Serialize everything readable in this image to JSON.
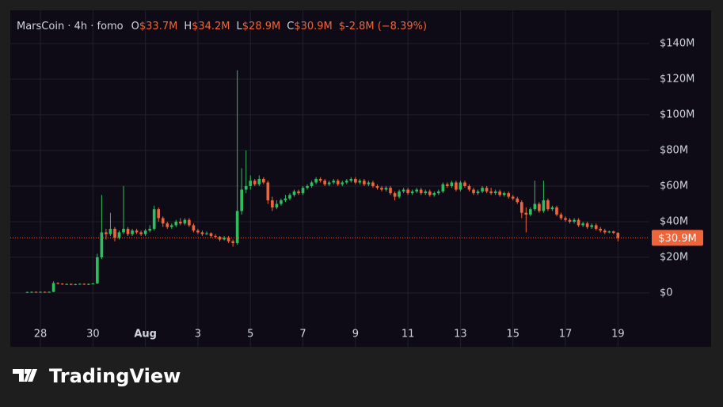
{
  "chart_data": {
    "type": "candlestick",
    "title": "MarsCoin · 4h · fomo",
    "ohlc_readout": [
      {
        "label": "O",
        "value": "$33.7M"
      },
      {
        "label": "H",
        "value": "$34.2M"
      },
      {
        "label": "L",
        "value": "$28.9M"
      },
      {
        "label": "C",
        "value": "$30.9M"
      }
    ],
    "change": "$-2.8M (−8.39%)",
    "up_color": "#2ebd5f",
    "down_color": "#f0643a",
    "grid": true,
    "categories": [
      null,
      null,
      null,
      "28",
      null,
      null,
      null,
      null,
      null,
      null,
      null,
      null,
      null,
      null,
      null,
      "30",
      null,
      null,
      null,
      null,
      null,
      null,
      null,
      null,
      null,
      null,
      null,
      "Aug",
      null,
      null,
      null,
      null,
      null,
      null,
      null,
      null,
      null,
      null,
      null,
      "3",
      null,
      null,
      null,
      null,
      null,
      null,
      null,
      null,
      null,
      null,
      null,
      "5",
      null,
      null,
      null,
      null,
      null,
      null,
      null,
      null,
      null,
      null,
      null,
      "7",
      null,
      null,
      null,
      null,
      null,
      null,
      null,
      null,
      null,
      null,
      null,
      "9",
      null,
      null,
      null,
      null,
      null,
      null,
      null,
      null,
      null,
      null,
      null,
      "11",
      null,
      null,
      null,
      null,
      null,
      null,
      null,
      null,
      null,
      null,
      null,
      "13",
      null,
      null,
      null,
      null,
      null,
      null,
      null,
      null,
      null,
      null,
      null,
      "15",
      null,
      null,
      null,
      null,
      null,
      null,
      null,
      null,
      null,
      null,
      null,
      "17",
      null,
      null,
      null,
      null,
      null,
      null,
      null,
      null,
      null,
      null,
      null,
      "19"
    ],
    "open": [
      0.5,
      0.5,
      0.6,
      0.5,
      0.6,
      0.5,
      0.6,
      5.5,
      5.2,
      4.8,
      5.0,
      4.6,
      4.9,
      5.1,
      4.7,
      5.0,
      5.3,
      20,
      34,
      33,
      36,
      31,
      34,
      36,
      33,
      35,
      34,
      33,
      35,
      36,
      47,
      42,
      39,
      37,
      38,
      40,
      39,
      41,
      38,
      35,
      34,
      33,
      33.5,
      32,
      31.5,
      30,
      31,
      29,
      28,
      46,
      58,
      60,
      63,
      61,
      64,
      62,
      52,
      48,
      50,
      52,
      53,
      55,
      57,
      56,
      59,
      60,
      62,
      64,
      63,
      61,
      62,
      63,
      61,
      62,
      63,
      64,
      62,
      63,
      61,
      62,
      60,
      59,
      58,
      59,
      56,
      54,
      57,
      58,
      56,
      57,
      58,
      56,
      57,
      55,
      56,
      57,
      61,
      60,
      62,
      58,
      62,
      60,
      58,
      56,
      57,
      59,
      57,
      56,
      57,
      55,
      56,
      54,
      53,
      51,
      45,
      44,
      47,
      50,
      46,
      52,
      47,
      48,
      44,
      42,
      41,
      40,
      41,
      38,
      39,
      37,
      38,
      36,
      35,
      34,
      34.5,
      33.7
    ],
    "high": [
      0.7,
      0.8,
      0.8,
      0.8,
      0.8,
      0.8,
      6.5,
      6,
      5.5,
      5.4,
      5.4,
      5.2,
      5.4,
      5.4,
      5.3,
      5.6,
      22,
      55,
      36,
      45,
      37,
      35,
      60,
      37,
      36,
      36,
      35,
      36,
      38,
      49,
      48,
      43,
      40,
      39,
      41,
      42,
      42,
      42,
      39,
      36,
      35,
      34.5,
      34,
      33,
      32,
      32,
      32,
      30,
      125,
      70,
      80,
      66,
      64,
      66,
      65,
      63,
      54,
      52,
      53,
      55,
      56,
      58,
      58,
      60,
      61,
      63,
      65,
      65,
      64,
      63,
      64,
      64,
      63,
      64,
      65,
      65,
      64,
      64,
      63,
      63,
      61,
      60,
      60,
      60,
      57,
      58,
      59,
      59,
      58,
      59,
      59,
      58,
      58,
      57,
      58,
      62,
      62,
      63,
      63,
      63,
      63,
      61,
      59,
      58,
      60,
      60,
      59,
      58,
      58,
      57,
      57,
      55,
      54,
      52,
      48,
      48,
      63,
      51,
      63,
      53,
      49,
      49,
      45,
      43,
      42,
      42,
      42,
      40,
      40,
      39,
      39,
      37,
      36,
      35,
      35,
      34.2
    ],
    "low": [
      0.3,
      0.4,
      0.4,
      0.4,
      0.4,
      0.4,
      0.4,
      4.8,
      4.5,
      4.5,
      4.3,
      4.3,
      4.6,
      4.5,
      4.4,
      4.8,
      5,
      19,
      30,
      32,
      29,
      30,
      33,
      32,
      32,
      33,
      32,
      32,
      34,
      35,
      40,
      37,
      36,
      36,
      37,
      38,
      38,
      37,
      34,
      33,
      32,
      32.5,
      31,
      30.5,
      29,
      29.5,
      28,
      26,
      27,
      44,
      56,
      58,
      60,
      60,
      61,
      50,
      46,
      47,
      49,
      51,
      52,
      54,
      55,
      55,
      58,
      59,
      61,
      62,
      60,
      60,
      61,
      60,
      60,
      61,
      62,
      61,
      61,
      60,
      60,
      59,
      58,
      57,
      57,
      55,
      52,
      53,
      56,
      55,
      55,
      56,
      55,
      55,
      54,
      54,
      55,
      56,
      59,
      59,
      57,
      57,
      59,
      57,
      55,
      55,
      56,
      56,
      55,
      55,
      54,
      54,
      53,
      52,
      50,
      42,
      34,
      43,
      46,
      45,
      45,
      46,
      46,
      43,
      41,
      40,
      39,
      39,
      37,
      37,
      36,
      36,
      35,
      34,
      33,
      33.5,
      33,
      28.9
    ],
    "close": [
      0.5,
      0.6,
      0.5,
      0.6,
      0.5,
      0.6,
      5.5,
      5.2,
      4.8,
      5.0,
      4.6,
      4.9,
      5.1,
      4.7,
      5.0,
      5.3,
      20,
      34,
      33,
      36,
      31,
      34,
      36,
      33,
      35,
      34,
      33,
      35,
      36,
      47,
      42,
      39,
      37,
      38,
      40,
      39,
      41,
      38,
      35,
      34,
      33,
      33.5,
      32,
      31.5,
      30,
      31,
      29,
      28,
      46,
      58,
      60,
      63,
      61,
      64,
      62,
      52,
      48,
      50,
      52,
      53,
      55,
      57,
      56,
      59,
      60,
      62,
      64,
      63,
      61,
      62,
      63,
      61,
      62,
      63,
      64,
      62,
      63,
      61,
      62,
      60,
      59,
      58,
      59,
      56,
      54,
      57,
      58,
      56,
      57,
      58,
      56,
      57,
      55,
      56,
      57,
      61,
      60,
      62,
      58,
      62,
      60,
      58,
      56,
      57,
      59,
      57,
      56,
      57,
      55,
      56,
      54,
      53,
      51,
      45,
      44,
      47,
      50,
      46,
      52,
      47,
      48,
      44,
      42,
      41,
      40,
      41,
      38,
      39,
      37,
      38,
      36,
      35,
      34,
      34.5,
      33.7,
      30.9
    ],
    "last_price": {
      "value": 30.9,
      "label": "$30.9M"
    },
    "ylim": [
      -15.6,
      158.7
    ],
    "yticks": [
      {
        "value": 0,
        "label": "$0"
      },
      {
        "value": 20,
        "label": "$20M"
      },
      {
        "value": 40,
        "label": "$40M"
      },
      {
        "value": 60,
        "label": "$60M"
      },
      {
        "value": 80,
        "label": "$80M"
      },
      {
        "value": 100,
        "label": "$100M"
      },
      {
        "value": 120,
        "label": "$120M"
      },
      {
        "value": 140,
        "label": "$140M"
      }
    ]
  },
  "footer_brand": "TradingView"
}
